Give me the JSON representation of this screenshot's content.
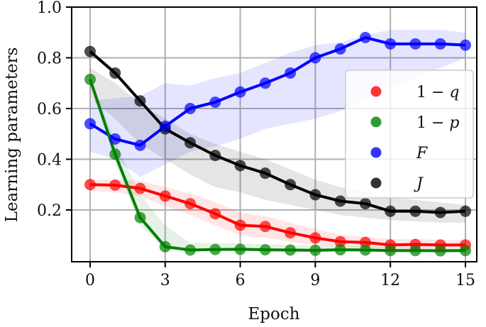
{
  "chart_data": {
    "type": "line",
    "title": "",
    "xlabel": "Epoch",
    "ylabel": "Learning parameters",
    "xlim": [
      -0.75,
      15.45
    ],
    "ylim": [
      0.0,
      1.0
    ],
    "xticks": [
      0,
      3,
      6,
      9,
      12,
      15
    ],
    "xtick_labels": [
      "0",
      "3",
      "6",
      "9",
      "12",
      "15"
    ],
    "yticks": [
      0.2,
      0.4,
      0.6,
      0.8,
      1.0
    ],
    "ytick_labels": [
      "0.2",
      "0.4",
      "0.6",
      "0.8",
      "1.0"
    ],
    "grid": true,
    "legend_position": "center right",
    "x": [
      0,
      1,
      2,
      3,
      4,
      5,
      6,
      7,
      8,
      9,
      10,
      11,
      12,
      13,
      14,
      15
    ],
    "series": [
      {
        "name": "1 − q",
        "legend_main": "1 − ",
        "legend_var": "q",
        "color": "#ff0000",
        "values": [
          0.3,
          0.298,
          0.285,
          0.255,
          0.225,
          0.185,
          0.14,
          0.135,
          0.11,
          0.09,
          0.075,
          0.072,
          0.062,
          0.064,
          0.062,
          0.062
        ],
        "band_lower": [
          0.275,
          0.27,
          0.255,
          0.215,
          0.18,
          0.14,
          0.1,
          0.09,
          0.075,
          0.06,
          0.055,
          0.052,
          0.048,
          0.048,
          0.048,
          0.05
        ],
        "band_upper": [
          0.32,
          0.32,
          0.315,
          0.29,
          0.265,
          0.23,
          0.19,
          0.175,
          0.15,
          0.125,
          0.1,
          0.095,
          0.085,
          0.085,
          0.082,
          0.08
        ]
      },
      {
        "name": "1 − p",
        "legend_main": "1 − ",
        "legend_var": "p",
        "color": "#008000",
        "values": [
          0.715,
          0.42,
          0.17,
          0.055,
          0.042,
          0.044,
          0.045,
          0.043,
          0.042,
          0.041,
          0.043,
          0.042,
          0.04,
          0.04,
          0.039,
          0.04
        ],
        "band_lower": [
          0.7,
          0.39,
          0.14,
          0.045,
          0.038,
          0.038,
          0.038,
          0.037,
          0.037,
          0.036,
          0.037,
          0.037,
          0.035,
          0.035,
          0.035,
          0.035
        ],
        "band_upper": [
          0.73,
          0.47,
          0.26,
          0.14,
          0.07,
          0.07,
          0.068,
          0.065,
          0.062,
          0.06,
          0.058,
          0.056,
          0.054,
          0.052,
          0.05,
          0.05
        ]
      },
      {
        "name": "F",
        "legend_main": "",
        "legend_var": "F",
        "color": "#0000ff",
        "values": [
          0.54,
          0.48,
          0.455,
          0.53,
          0.6,
          0.625,
          0.665,
          0.7,
          0.74,
          0.8,
          0.835,
          0.88,
          0.855,
          0.855,
          0.855,
          0.85
        ],
        "band_lower": [
          0.43,
          0.4,
          0.33,
          0.38,
          0.43,
          0.45,
          0.48,
          0.52,
          0.54,
          0.56,
          0.59,
          0.64,
          0.68,
          0.72,
          0.76,
          0.8
        ],
        "band_upper": [
          0.63,
          0.64,
          0.65,
          0.7,
          0.69,
          0.72,
          0.74,
          0.78,
          0.82,
          0.85,
          0.86,
          0.89,
          0.91,
          0.91,
          0.91,
          0.9
        ]
      },
      {
        "name": "J",
        "legend_main": "",
        "legend_var": "J",
        "color": "#000000",
        "values": [
          0.825,
          0.74,
          0.63,
          0.52,
          0.465,
          0.415,
          0.375,
          0.345,
          0.3,
          0.26,
          0.235,
          0.225,
          0.195,
          0.195,
          0.19,
          0.195
        ],
        "band_lower": [
          0.64,
          0.56,
          0.46,
          0.4,
          0.34,
          0.29,
          0.27,
          0.24,
          0.22,
          0.2,
          0.18,
          0.17,
          0.16,
          0.155,
          0.15,
          0.15
        ],
        "band_upper": [
          0.76,
          0.7,
          0.62,
          0.56,
          0.5,
          0.46,
          0.43,
          0.4,
          0.36,
          0.32,
          0.29,
          0.27,
          0.25,
          0.24,
          0.23,
          0.22
        ]
      }
    ]
  }
}
